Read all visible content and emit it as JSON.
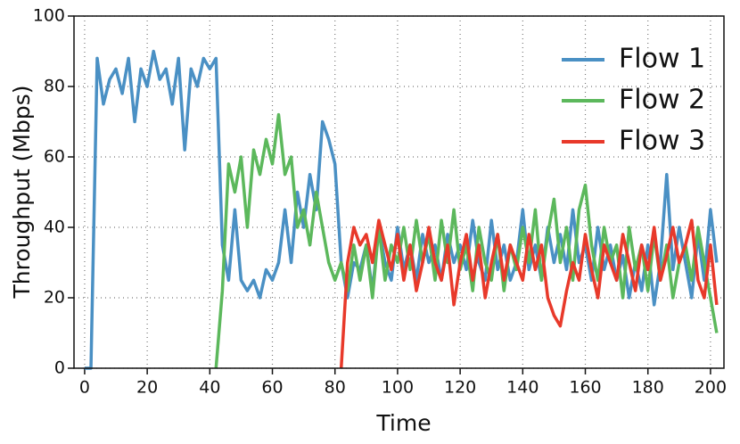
{
  "chart_data": {
    "type": "line",
    "xlabel": "Time",
    "ylabel": "Throughput (Mbps)",
    "x": [
      0,
      2,
      4,
      6,
      8,
      10,
      12,
      14,
      16,
      18,
      20,
      22,
      24,
      26,
      28,
      30,
      32,
      34,
      36,
      38,
      40,
      42,
      44,
      46,
      48,
      50,
      52,
      54,
      56,
      58,
      60,
      62,
      64,
      66,
      68,
      70,
      72,
      74,
      76,
      78,
      80,
      82,
      84,
      86,
      88,
      90,
      92,
      94,
      96,
      98,
      100,
      102,
      104,
      106,
      108,
      110,
      112,
      114,
      116,
      118,
      120,
      122,
      124,
      126,
      128,
      130,
      132,
      134,
      136,
      138,
      140,
      142,
      144,
      146,
      148,
      150,
      152,
      154,
      156,
      158,
      160,
      162,
      164,
      166,
      168,
      170,
      172,
      174,
      176,
      178,
      180,
      182,
      184,
      186,
      188,
      190,
      192,
      194,
      196,
      198,
      200,
      202
    ],
    "series": [
      {
        "name": "Flow 1",
        "color": "#4a90c4",
        "values": [
          0,
          0,
          88,
          75,
          82,
          85,
          78,
          88,
          70,
          85,
          80,
          90,
          82,
          85,
          75,
          88,
          62,
          85,
          80,
          88,
          85,
          88,
          35,
          25,
          45,
          25,
          22,
          25,
          20,
          28,
          25,
          30,
          45,
          30,
          50,
          40,
          55,
          45,
          70,
          65,
          58,
          30,
          20,
          30,
          28,
          35,
          22,
          40,
          30,
          25,
          40,
          28,
          35,
          25,
          38,
          30,
          35,
          25,
          38,
          30,
          35,
          28,
          42,
          30,
          25,
          42,
          28,
          35,
          25,
          30,
          45,
          28,
          35,
          25,
          40,
          30,
          38,
          28,
          45,
          30,
          35,
          25,
          40,
          28,
          35,
          25,
          32,
          20,
          30,
          22,
          35,
          18,
          30,
          55,
          28,
          40,
          30,
          20,
          38,
          25,
          45,
          30
        ]
      },
      {
        "name": "Flow 2",
        "color": "#5cb85c",
        "values": [
          null,
          null,
          null,
          null,
          null,
          null,
          null,
          null,
          null,
          null,
          null,
          null,
          null,
          null,
          null,
          null,
          null,
          null,
          null,
          null,
          null,
          0,
          22,
          58,
          50,
          60,
          40,
          62,
          55,
          65,
          58,
          72,
          55,
          60,
          40,
          45,
          35,
          50,
          40,
          30,
          25,
          30,
          22,
          35,
          25,
          35,
          20,
          40,
          25,
          35,
          30,
          40,
          28,
          42,
          30,
          38,
          25,
          42,
          30,
          45,
          28,
          35,
          22,
          40,
          30,
          25,
          38,
          22,
          35,
          28,
          40,
          30,
          45,
          25,
          38,
          48,
          30,
          40,
          25,
          45,
          52,
          35,
          25,
          40,
          30,
          35,
          20,
          40,
          28,
          35,
          22,
          38,
          25,
          35,
          20,
          30,
          35,
          25,
          40,
          30,
          20,
          10
        ]
      },
      {
        "name": "Flow 3",
        "color": "#e8392a",
        "values": [
          null,
          null,
          null,
          null,
          null,
          null,
          null,
          null,
          null,
          null,
          null,
          null,
          null,
          null,
          null,
          null,
          null,
          null,
          null,
          null,
          null,
          null,
          null,
          null,
          null,
          null,
          null,
          null,
          null,
          null,
          null,
          null,
          null,
          null,
          null,
          null,
          null,
          null,
          null,
          null,
          null,
          0,
          30,
          40,
          35,
          38,
          30,
          42,
          35,
          28,
          38,
          25,
          35,
          22,
          30,
          40,
          30,
          25,
          35,
          18,
          30,
          38,
          25,
          35,
          20,
          30,
          38,
          25,
          35,
          30,
          25,
          38,
          28,
          35,
          20,
          15,
          12,
          22,
          30,
          25,
          38,
          28,
          20,
          35,
          30,
          25,
          38,
          30,
          22,
          35,
          28,
          40,
          25,
          32,
          40,
          30,
          35,
          42,
          25,
          20,
          35,
          18
        ]
      }
    ],
    "xlim": [
      -3.4,
      204.3
    ],
    "ylim": [
      0,
      100
    ],
    "xticks": [
      0,
      20,
      40,
      60,
      80,
      100,
      120,
      140,
      160,
      180,
      200
    ],
    "yticks": [
      0,
      20,
      40,
      60,
      80,
      100
    ],
    "grid": true,
    "legend": "upper right"
  }
}
